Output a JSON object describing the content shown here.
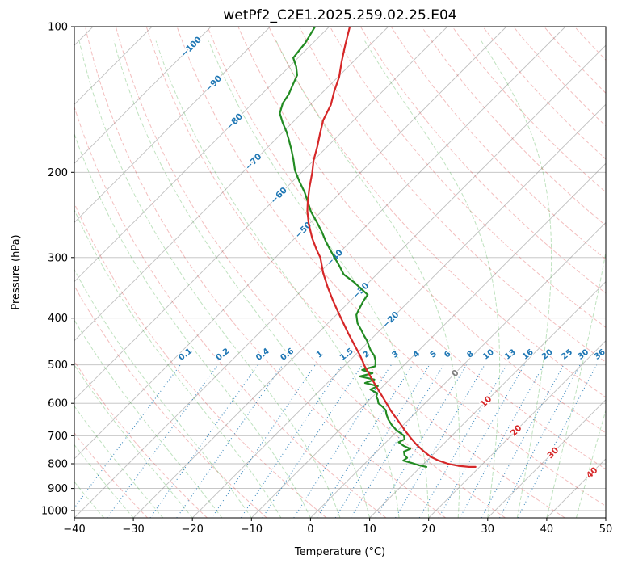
{
  "title": "wetPf2_C2E1.2025.259.02.25.E04",
  "axes": {
    "x_label": "Temperature (°C)",
    "y_label": "Pressure (hPa)",
    "x_ticks": [
      {
        "v": -40,
        "label": "−40"
      },
      {
        "v": -30,
        "label": "−30"
      },
      {
        "v": -20,
        "label": "−20"
      },
      {
        "v": -10,
        "label": "−10"
      },
      {
        "v": 0,
        "label": "0"
      },
      {
        "v": 10,
        "label": "10"
      },
      {
        "v": 20,
        "label": "20"
      },
      {
        "v": 30,
        "label": "30"
      },
      {
        "v": 40,
        "label": "40"
      },
      {
        "v": 50,
        "label": "50"
      }
    ],
    "y_ticks": [
      {
        "v": 100,
        "label": "100"
      },
      {
        "v": 200,
        "label": "200"
      },
      {
        "v": 300,
        "label": "300"
      },
      {
        "v": 400,
        "label": "400"
      },
      {
        "v": 500,
        "label": "500"
      },
      {
        "v": 600,
        "label": "600"
      },
      {
        "v": 700,
        "label": "700"
      },
      {
        "v": 800,
        "label": "800"
      },
      {
        "v": 900,
        "label": "900"
      },
      {
        "v": 1000,
        "label": "1000"
      }
    ]
  },
  "chart_data": {
    "type": "skewt-log-p",
    "pressure_top": 100,
    "pressure_bottom": 1035,
    "temp_min": -40,
    "temp_max": 50,
    "skew_deg": 45,
    "grid": true,
    "colors": {
      "grid": "#808080",
      "dry_adiabat": "#d62728",
      "moist_adiabat": "#2ca02c",
      "mixing_ratio": "#1f77b4",
      "temperature": "#d62728",
      "dewpoint": "#228b22",
      "label_cold": "#1f77b4",
      "label_zero": "#808080",
      "label_warm": "#d62728"
    },
    "isotherms": {
      "min": -120,
      "max": 50,
      "step": 10
    },
    "isotherm_labels": [
      {
        "t": -100,
        "label": "−100",
        "p": 110,
        "color": "#1f77b4"
      },
      {
        "t": -90,
        "label": "−90",
        "p": 131,
        "color": "#1f77b4"
      },
      {
        "t": -80,
        "label": "−80",
        "p": 157,
        "color": "#1f77b4"
      },
      {
        "t": -70,
        "label": "−70",
        "p": 190,
        "color": "#1f77b4"
      },
      {
        "t": -60,
        "label": "−60",
        "p": 223,
        "color": "#1f77b4"
      },
      {
        "t": -50,
        "label": "−50",
        "p": 263,
        "color": "#1f77b4"
      },
      {
        "t": -40,
        "label": "−40",
        "p": 300,
        "color": "#1f77b4"
      },
      {
        "t": -30,
        "label": "−30",
        "p": 351,
        "color": "#1f77b4"
      },
      {
        "t": -20,
        "label": "−20",
        "p": 403,
        "color": "#1f77b4"
      },
      {
        "t": 0,
        "label": "0",
        "p": 520,
        "color": "#808080"
      },
      {
        "t": 10,
        "label": "10",
        "p": 595,
        "color": "#d62728"
      },
      {
        "t": 20,
        "label": "20",
        "p": 683,
        "color": "#d62728"
      },
      {
        "t": 30,
        "label": "30",
        "p": 759,
        "color": "#d62728"
      },
      {
        "t": 40,
        "label": "40",
        "p": 835,
        "color": "#d62728"
      }
    ],
    "dry_adiabats": {
      "theta_min_c": -30,
      "theta_max_c": 190,
      "step": 10
    },
    "moist_adiabats": {
      "t0_min": -35,
      "t0_max": 50,
      "step": 5
    },
    "mixing_ratio": {
      "values": [
        0.1,
        0.2,
        0.4,
        0.6,
        1,
        1.5,
        2,
        3,
        4,
        5,
        6,
        8,
        10,
        13,
        16,
        20,
        25,
        30,
        36
      ],
      "top_pressure": 500,
      "label_pressure": 480
    },
    "temperature_profile": {
      "name": "temperature",
      "points": [
        [
          100,
          -76.5
        ],
        [
          109,
          -74.2
        ],
        [
          118,
          -72.0
        ],
        [
          127,
          -69.8
        ],
        [
          136,
          -68.2
        ],
        [
          145,
          -66.5
        ],
        [
          156,
          -65.2
        ],
        [
          166,
          -63.5
        ],
        [
          177,
          -61.7
        ],
        [
          189,
          -60.0
        ],
        [
          200,
          -58.2
        ],
        [
          215,
          -56.1
        ],
        [
          230,
          -54.0
        ],
        [
          241,
          -52.4
        ],
        [
          256,
          -50.0
        ],
        [
          274,
          -47.0
        ],
        [
          290,
          -44.2
        ],
        [
          300,
          -42.4
        ],
        [
          323,
          -39.3
        ],
        [
          345,
          -36.2
        ],
        [
          368,
          -33.0
        ],
        [
          387,
          -30.4
        ],
        [
          402,
          -28.4
        ],
        [
          429,
          -25.0
        ],
        [
          455,
          -21.8
        ],
        [
          478,
          -19.1
        ],
        [
          503,
          -16.5
        ],
        [
          530,
          -13.6
        ],
        [
          562,
          -10.3
        ],
        [
          591,
          -7.4
        ],
        [
          621,
          -4.6
        ],
        [
          650,
          -1.8
        ],
        [
          683,
          1.2
        ],
        [
          705,
          3.2
        ],
        [
          730,
          5.5
        ],
        [
          752,
          7.7
        ],
        [
          773,
          9.9
        ],
        [
          788,
          12.0
        ],
        [
          800,
          14.1
        ],
        [
          808,
          16.2
        ],
        [
          812,
          18.2
        ],
        [
          812,
          19.3
        ]
      ]
    },
    "dewpoint_profile": {
      "name": "dewpoint",
      "points": [
        [
          100,
          -82.4
        ],
        [
          108,
          -81.3
        ],
        [
          116,
          -80.8
        ],
        [
          121,
          -78.8
        ],
        [
          126,
          -77.2
        ],
        [
          132,
          -76.3
        ],
        [
          138,
          -75.4
        ],
        [
          144,
          -74.9
        ],
        [
          151,
          -73.7
        ],
        [
          158,
          -71.6
        ],
        [
          165,
          -69.4
        ],
        [
          172,
          -67.5
        ],
        [
          179,
          -65.7
        ],
        [
          188,
          -63.6
        ],
        [
          198,
          -61.5
        ],
        [
          209,
          -58.8
        ],
        [
          220,
          -56.1
        ],
        [
          230,
          -54.0
        ],
        [
          241,
          -51.8
        ],
        [
          253,
          -49.1
        ],
        [
          266,
          -46.4
        ],
        [
          279,
          -44.0
        ],
        [
          292,
          -41.5
        ],
        [
          300,
          -40.0
        ],
        [
          312,
          -37.8
        ],
        [
          325,
          -35.6
        ],
        [
          337,
          -32.6
        ],
        [
          349,
          -30.0
        ],
        [
          358,
          -28.1
        ],
        [
          368,
          -27.8
        ],
        [
          377,
          -27.4
        ],
        [
          386,
          -27.0
        ],
        [
          394,
          -26.6
        ],
        [
          402,
          -25.8
        ],
        [
          410,
          -25.0
        ],
        [
          422,
          -23.4
        ],
        [
          434,
          -21.9
        ],
        [
          445,
          -20.5
        ],
        [
          457,
          -19.2
        ],
        [
          468,
          -18.0
        ],
        [
          478,
          -16.7
        ],
        [
          490,
          -15.6
        ],
        [
          503,
          -14.7
        ],
        [
          512,
          -16.3
        ],
        [
          520,
          -14.0
        ],
        [
          528,
          -15.6
        ],
        [
          536,
          -12.6
        ],
        [
          545,
          -13.6
        ],
        [
          553,
          -10.9
        ],
        [
          562,
          -11.6
        ],
        [
          572,
          -9.8
        ],
        [
          581,
          -9.4
        ],
        [
          590,
          -8.6
        ],
        [
          600,
          -7.9
        ],
        [
          610,
          -6.6
        ],
        [
          620,
          -5.5
        ],
        [
          632,
          -4.7
        ],
        [
          648,
          -3.5
        ],
        [
          665,
          -2.0
        ],
        [
          682,
          -0.3
        ],
        [
          700,
          1.9
        ],
        [
          712,
          2.6
        ],
        [
          722,
          2.1
        ],
        [
          735,
          3.6
        ],
        [
          745,
          5.2
        ],
        [
          755,
          4.6
        ],
        [
          768,
          5.3
        ],
        [
          778,
          6.2
        ],
        [
          788,
          6.0
        ],
        [
          798,
          8.0
        ],
        [
          806,
          9.5
        ],
        [
          812,
          11.0
        ]
      ]
    }
  }
}
